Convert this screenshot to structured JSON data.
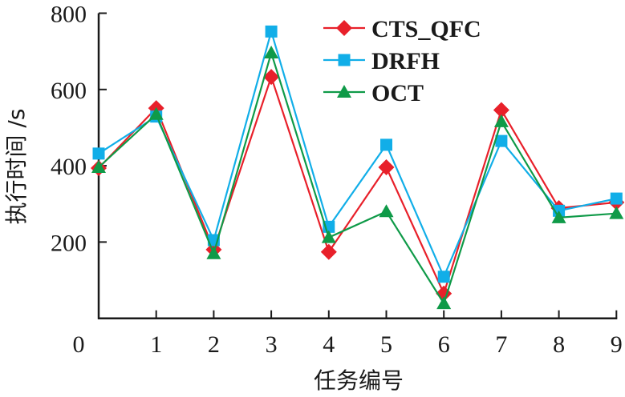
{
  "chart_data": {
    "type": "line",
    "title": "",
    "xlabel": "任务编号",
    "ylabel": "执行时间 /s",
    "x": [
      0,
      1,
      2,
      3,
      4,
      5,
      6,
      7,
      8,
      9
    ],
    "xticks": [
      "0",
      "1",
      "2",
      "3",
      "4",
      "5",
      "6",
      "7",
      "8",
      "9"
    ],
    "yticks": [
      "200",
      "400",
      "600",
      "800"
    ],
    "ylim": [
      0,
      800
    ],
    "grid": false,
    "legend_position": "top-right",
    "series": [
      {
        "name": "CTS_QFC",
        "color": "#e8202a",
        "marker": "diamond",
        "values": [
          394,
          551,
          180,
          633,
          174,
          396,
          65,
          546,
          289,
          304
        ]
      },
      {
        "name": "DRFH",
        "color": "#11aee8",
        "marker": "square",
        "values": [
          432,
          529,
          205,
          752,
          240,
          455,
          109,
          465,
          282,
          314
        ]
      },
      {
        "name": "OCT",
        "color": "#0f9a48",
        "marker": "triangle",
        "values": [
          396,
          535,
          170,
          696,
          212,
          280,
          39,
          516,
          264,
          275
        ]
      }
    ]
  }
}
